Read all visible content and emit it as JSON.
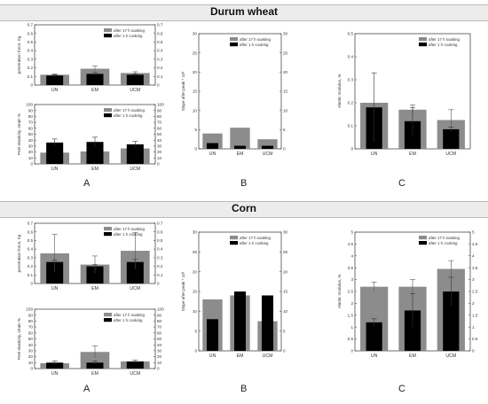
{
  "sections": [
    {
      "title": "Durum wheat",
      "panel_labels": [
        "A",
        "B",
        "C"
      ]
    },
    {
      "title": "Corn",
      "panel_labels": [
        "A",
        "B",
        "C"
      ]
    }
  ],
  "colors": {
    "soaking": "#8c8c8c",
    "cooking": "#000000"
  },
  "chart_data": [
    {
      "id": "durum-penetration",
      "section": "Durum wheat",
      "panel": "A",
      "type": "bar",
      "title": "",
      "xlabel": "",
      "ylabel": "penetration force, Kg",
      "categories": [
        "UN",
        "EM",
        "UCM"
      ],
      "ylim": [
        0,
        0.7
      ],
      "ticks": [
        0,
        0.1,
        0.2,
        0.3,
        0.4,
        0.5,
        0.6,
        0.7
      ],
      "right_axis": true,
      "series": [
        {
          "name": "after 17 h soaking",
          "values": [
            0.12,
            0.19,
            0.14
          ],
          "errors": [
            0.01,
            0.03,
            0.015
          ]
        },
        {
          "name": "after 1 h cooking",
          "values": [
            0.11,
            0.13,
            0.12
          ],
          "errors": [
            0.01,
            0.015,
            0.01
          ]
        }
      ]
    },
    {
      "id": "durum-elasticity",
      "section": "Durum wheat",
      "panel": "A",
      "type": "bar",
      "title": "",
      "xlabel": "",
      "ylabel": "Peel elasticity, strain %",
      "categories": [
        "UN",
        "EM",
        "UCM"
      ],
      "ylim": [
        0,
        100
      ],
      "ticks": [
        0,
        10,
        20,
        30,
        40,
        50,
        60,
        70,
        80,
        90,
        100
      ],
      "right_axis": true,
      "series": [
        {
          "name": "after 17 h soaking",
          "values": [
            19,
            21,
            26
          ],
          "errors": [
            0,
            0,
            0
          ]
        },
        {
          "name": "after 1 h cooking",
          "values": [
            36,
            37,
            33
          ],
          "errors": [
            6,
            8,
            5
          ]
        }
      ]
    },
    {
      "id": "durum-slope",
      "section": "Durum wheat",
      "panel": "B",
      "type": "bar",
      "title": "",
      "xlabel": "",
      "ylabel": "Slope after peak * 10³",
      "categories": [
        "UN",
        "EM",
        "UCM"
      ],
      "ylim": [
        0,
        30
      ],
      "ticks": [
        0,
        5,
        10,
        15,
        20,
        25,
        30
      ],
      "right_axis": true,
      "series": [
        {
          "name": "after 17 h soaking",
          "values": [
            4,
            5.5,
            2.5
          ],
          "errors": [
            0,
            0,
            0
          ]
        },
        {
          "name": "after 1 h cooking",
          "values": [
            1.5,
            0.8,
            0.8
          ],
          "errors": [
            0,
            0,
            0
          ]
        }
      ]
    },
    {
      "id": "durum-elastic-modulus",
      "section": "Durum wheat",
      "panel": "C",
      "type": "bar",
      "title": "",
      "xlabel": "",
      "ylabel": "elastic modulus, N",
      "categories": [
        "UN",
        "EM",
        "UCM"
      ],
      "ylim": [
        0,
        0.5
      ],
      "ticks": [
        0,
        0.1,
        0.2,
        0.3,
        0.4,
        0.5
      ],
      "right_axis": false,
      "series": [
        {
          "name": "after 17 h soaking",
          "values": [
            0.2,
            0.17,
            0.125
          ],
          "errors": [
            0,
            0.02,
            0.045
          ]
        },
        {
          "name": "after 1 h cooking",
          "values": [
            0.18,
            0.12,
            0.085
          ],
          "errors": [
            0.15,
            0.06,
            0.01
          ]
        }
      ]
    },
    {
      "id": "corn-penetration",
      "section": "Corn",
      "panel": "A",
      "type": "bar",
      "title": "",
      "xlabel": "",
      "ylabel": "penetration force, Kg",
      "categories": [
        "UN",
        "EM",
        "UCM"
      ],
      "ylim": [
        0,
        0.7
      ],
      "ticks": [
        0,
        0.1,
        0.2,
        0.3,
        0.4,
        0.5,
        0.6,
        0.7
      ],
      "right_axis": true,
      "series": [
        {
          "name": "after 17 h soaking",
          "values": [
            0.35,
            0.22,
            0.38
          ],
          "errors": [
            0.22,
            0.1,
            0.21
          ]
        },
        {
          "name": "after 1 h cooking",
          "values": [
            0.25,
            0.2,
            0.25
          ],
          "errors": [
            0.02,
            0.02,
            0.03
          ]
        }
      ]
    },
    {
      "id": "corn-elasticity",
      "section": "Corn",
      "panel": "A",
      "type": "bar",
      "title": "",
      "xlabel": "",
      "ylabel": "Peel elasticity, strain %",
      "categories": [
        "UN",
        "EM",
        "UCM"
      ],
      "ylim": [
        0,
        100
      ],
      "ticks": [
        0,
        10,
        20,
        30,
        40,
        50,
        60,
        70,
        80,
        90,
        100
      ],
      "right_axis": true,
      "series": [
        {
          "name": "after 17 h soaking",
          "values": [
            9,
            28,
            12
          ],
          "errors": [
            0,
            10,
            0
          ]
        },
        {
          "name": "after 1 h cooking",
          "values": [
            10,
            10,
            12
          ],
          "errors": [
            3,
            3,
            2
          ]
        }
      ]
    },
    {
      "id": "corn-slope",
      "section": "Corn",
      "panel": "B",
      "type": "bar",
      "title": "",
      "xlabel": "",
      "ylabel": "Slope after peak * 10³",
      "categories": [
        "UN",
        "EM",
        "UCM"
      ],
      "ylim": [
        0,
        30
      ],
      "ticks": [
        0,
        5,
        10,
        15,
        20,
        25,
        30
      ],
      "right_axis": true,
      "series": [
        {
          "name": "after 17 h soaking",
          "values": [
            13,
            14,
            7.5
          ],
          "errors": [
            0,
            0,
            0
          ]
        },
        {
          "name": "after 1 h cooking",
          "values": [
            8,
            15,
            14
          ],
          "errors": [
            0,
            0,
            0
          ]
        }
      ]
    },
    {
      "id": "corn-elastic-modulus",
      "section": "Corn",
      "panel": "C",
      "type": "bar",
      "title": "",
      "xlabel": "",
      "ylabel": "elastic modulus, N",
      "categories": [
        "UN",
        "EM",
        "UCM"
      ],
      "ylim": [
        0,
        5
      ],
      "ticks": [
        0,
        0.5,
        1,
        1.5,
        2,
        2.5,
        3,
        3.5,
        4,
        4.5,
        5
      ],
      "right_axis": true,
      "series": [
        {
          "name": "after 17 h soaking",
          "values": [
            2.7,
            2.7,
            3.45
          ],
          "errors": [
            0.2,
            0.3,
            0.35
          ]
        },
        {
          "name": "after 1 h cooking",
          "values": [
            1.2,
            1.7,
            2.5
          ],
          "errors": [
            0.15,
            0.7,
            0.6
          ]
        }
      ]
    }
  ]
}
